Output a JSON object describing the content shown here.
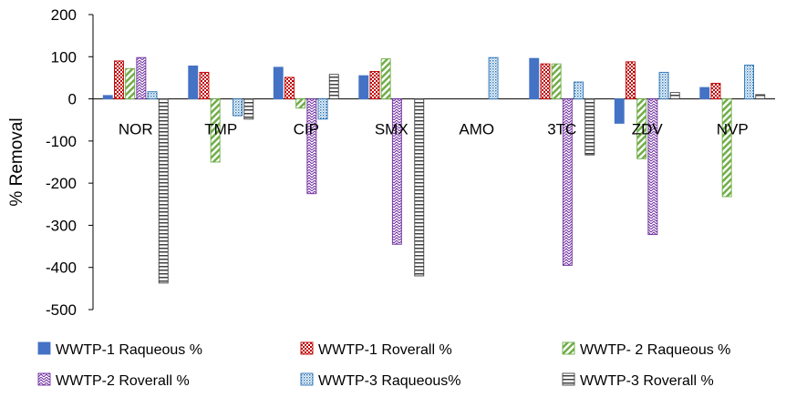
{
  "chart_data": {
    "type": "bar",
    "title": "",
    "xlabel": "",
    "ylabel": "% Removal",
    "ylim": [
      -500,
      200
    ],
    "yticks": [
      200,
      100,
      0,
      -100,
      -200,
      -300,
      -400,
      -500
    ],
    "grid": false,
    "legend_position": "bottom",
    "categories": [
      "NOR",
      "TMP",
      "CIP",
      "SMX",
      "AMO",
      "3TC",
      "ZDV",
      "NVP"
    ],
    "series": [
      {
        "name": "WWTP-1 Raqueous %",
        "color": "#4472C4",
        "pattern": "solid",
        "values": [
          8,
          78,
          75,
          55,
          null,
          96,
          -58,
          27
        ]
      },
      {
        "name": "WWTP-1 Roverall %",
        "color": "#C00000",
        "pattern": "checker",
        "values": [
          90,
          63,
          51,
          65,
          null,
          83,
          88,
          37
        ]
      },
      {
        "name": "WWTP- 2 Raqueous %",
        "color": "#70AD47",
        "pattern": "diagonal",
        "values": [
          72,
          -150,
          -22,
          95,
          null,
          83,
          -142,
          -232
        ]
      },
      {
        "name": "WWTP-2 Roverall %",
        "color": "#7030A0",
        "pattern": "zigzag",
        "values": [
          98,
          null,
          -225,
          -345,
          null,
          -395,
          -322,
          null
        ]
      },
      {
        "name": "WWTP-3 Raqueous%",
        "color": "#2E75B6",
        "pattern": "dots",
        "values": [
          17,
          -40,
          -48,
          null,
          98,
          40,
          63,
          80
        ]
      },
      {
        "name": "WWTP-3 Roverall %",
        "color": "#404040",
        "pattern": "hstripes",
        "values": [
          -437,
          -48,
          58,
          -420,
          null,
          -133,
          15,
          10
        ]
      }
    ]
  }
}
